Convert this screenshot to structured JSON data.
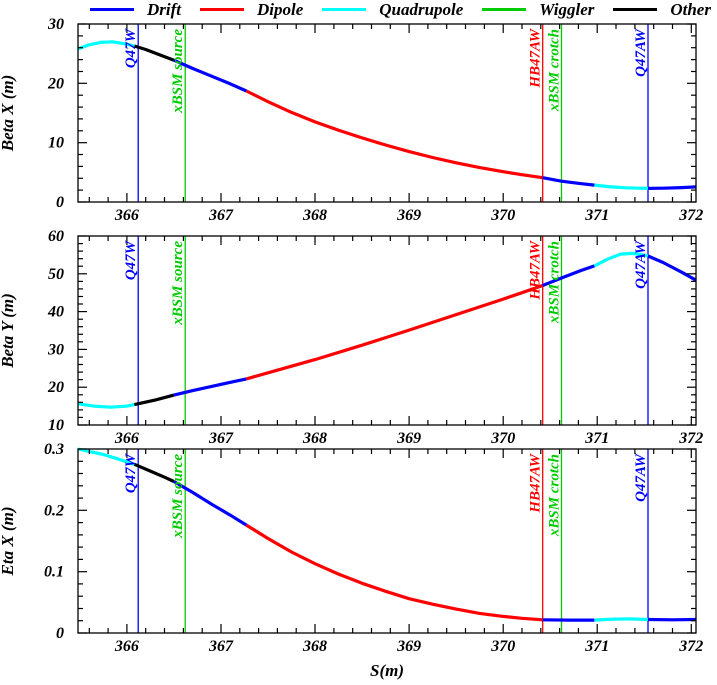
{
  "legend": {
    "items": [
      {
        "label": "Drift",
        "color": "#0000ff"
      },
      {
        "label": "Dipole",
        "color": "#ff0000"
      },
      {
        "label": "Quadrupole",
        "color": "#00ffff"
      },
      {
        "label": "Wiggler",
        "color": "#00cc00"
      },
      {
        "label": "Other",
        "color": "#000000"
      }
    ]
  },
  "markers": [
    {
      "label": "Q47W",
      "s": 366.12,
      "color": "#0000ff"
    },
    {
      "label": "xBSM source",
      "s": 366.62,
      "color": "#00cc00"
    },
    {
      "label": "HB47AW",
      "s": 370.42,
      "color": "#ff0000"
    },
    {
      "label": "xBSM crotch",
      "s": 370.62,
      "color": "#00cc00"
    },
    {
      "label": "Q47AW",
      "s": 371.54,
      "color": "#0000ff"
    }
  ],
  "axis": {
    "x_label": "S(m)",
    "x_min": 365.48,
    "x_max": 372.05,
    "x_ticks": [
      366,
      367,
      368,
      369,
      370,
      371,
      372
    ],
    "x_tick_labels": [
      "366",
      "367",
      "368",
      "369",
      "370",
      "371",
      "372"
    ],
    "x_minor_step": 0.2
  },
  "chart_data": [
    {
      "type": "line",
      "ylabel": "Beta X (m)",
      "ylim": [
        0,
        30
      ],
      "yticks": [
        0,
        10,
        20,
        30
      ],
      "ytick_labels": [
        "0",
        "10",
        "20",
        "30"
      ],
      "y_minor_step": 2,
      "grid": false,
      "segments": [
        {
          "element": "Quadrupole",
          "color": "#00ffff",
          "points": [
            [
              365.48,
              25.8
            ],
            [
              365.6,
              26.5
            ],
            [
              365.72,
              26.9
            ],
            [
              365.85,
              27.0
            ],
            [
              366.0,
              26.6
            ],
            [
              366.08,
              26.3
            ]
          ]
        },
        {
          "element": "Other",
          "color": "#000000",
          "points": [
            [
              366.08,
              26.3
            ],
            [
              366.2,
              25.7
            ],
            [
              366.35,
              24.8
            ],
            [
              366.5,
              23.9
            ]
          ]
        },
        {
          "element": "Drift",
          "color": "#0000ff",
          "points": [
            [
              366.5,
              23.9
            ],
            [
              366.7,
              22.5
            ],
            [
              366.9,
              21.2
            ],
            [
              367.1,
              19.9
            ],
            [
              367.27,
              18.7
            ]
          ]
        },
        {
          "element": "Dipole",
          "color": "#ff0000",
          "points": [
            [
              367.27,
              18.7
            ],
            [
              367.5,
              16.9
            ],
            [
              367.75,
              15.1
            ],
            [
              368.0,
              13.5
            ],
            [
              368.25,
              12.1
            ],
            [
              368.5,
              10.8
            ],
            [
              368.75,
              9.6
            ],
            [
              369.0,
              8.5
            ],
            [
              369.25,
              7.5
            ],
            [
              369.5,
              6.6
            ],
            [
              369.75,
              5.8
            ],
            [
              370.0,
              5.1
            ],
            [
              370.2,
              4.6
            ],
            [
              370.42,
              4.1
            ]
          ]
        },
        {
          "element": "Drift",
          "color": "#0000ff",
          "points": [
            [
              370.42,
              4.1
            ],
            [
              370.62,
              3.5
            ],
            [
              370.82,
              3.1
            ],
            [
              370.97,
              2.85
            ]
          ]
        },
        {
          "element": "Quadrupole",
          "color": "#00ffff",
          "points": [
            [
              370.97,
              2.85
            ],
            [
              371.12,
              2.6
            ],
            [
              371.3,
              2.4
            ],
            [
              371.54,
              2.3
            ]
          ]
        },
        {
          "element": "Drift",
          "color": "#0000ff",
          "points": [
            [
              371.54,
              2.3
            ],
            [
              371.7,
              2.33
            ],
            [
              371.9,
              2.42
            ],
            [
              372.05,
              2.55
            ]
          ]
        }
      ]
    },
    {
      "type": "line",
      "ylabel": "Beta Y (m)",
      "ylim": [
        10,
        60
      ],
      "yticks": [
        10,
        20,
        30,
        40,
        50,
        60
      ],
      "ytick_labels": [
        "10",
        "20",
        "30",
        "40",
        "50",
        "60"
      ],
      "y_minor_step": 2,
      "grid": false,
      "segments": [
        {
          "element": "Quadrupole",
          "color": "#00ffff",
          "points": [
            [
              365.48,
              15.6
            ],
            [
              365.65,
              15.0
            ],
            [
              365.82,
              14.7
            ],
            [
              366.0,
              15.0
            ],
            [
              366.08,
              15.4
            ]
          ]
        },
        {
          "element": "Other",
          "color": "#000000",
          "points": [
            [
              366.08,
              15.4
            ],
            [
              366.3,
              16.6
            ],
            [
              366.5,
              17.9
            ]
          ]
        },
        {
          "element": "Drift",
          "color": "#0000ff",
          "points": [
            [
              366.5,
              17.9
            ],
            [
              366.7,
              19.1
            ],
            [
              366.9,
              20.2
            ],
            [
              367.1,
              21.3
            ],
            [
              367.27,
              22.2
            ]
          ]
        },
        {
          "element": "Dipole",
          "color": "#ff0000",
          "points": [
            [
              367.27,
              22.2
            ],
            [
              367.5,
              23.8
            ],
            [
              368.0,
              27.3
            ],
            [
              368.5,
              31.1
            ],
            [
              369.0,
              35.1
            ],
            [
              369.5,
              39.2
            ],
            [
              370.0,
              43.3
            ],
            [
              370.2,
              45.0
            ],
            [
              370.42,
              46.9
            ]
          ]
        },
        {
          "element": "Drift",
          "color": "#0000ff",
          "points": [
            [
              370.42,
              46.9
            ],
            [
              370.62,
              48.9
            ],
            [
              370.82,
              50.8
            ],
            [
              370.97,
              52.1
            ]
          ]
        },
        {
          "element": "Quadrupole",
          "color": "#00ffff",
          "points": [
            [
              370.97,
              52.1
            ],
            [
              371.12,
              54.0
            ],
            [
              371.25,
              55.2
            ],
            [
              371.37,
              55.4
            ],
            [
              371.47,
              55.1
            ],
            [
              371.54,
              54.7
            ]
          ]
        },
        {
          "element": "Drift",
          "color": "#0000ff",
          "points": [
            [
              371.54,
              54.7
            ],
            [
              371.7,
              53.0
            ],
            [
              371.9,
              50.4
            ],
            [
              372.05,
              48.3
            ]
          ]
        }
      ]
    },
    {
      "type": "line",
      "ylabel": "Eta X (m)",
      "ylim": [
        0,
        0.3
      ],
      "yticks": [
        0,
        0.1,
        0.2,
        0.3
      ],
      "ytick_labels": [
        "0",
        "0.1",
        "0.2",
        "0.3"
      ],
      "y_minor_step": 0.02,
      "grid": false,
      "segments": [
        {
          "element": "Quadrupole",
          "color": "#00ffff",
          "points": [
            [
              365.48,
              0.3
            ],
            [
              365.6,
              0.296
            ],
            [
              365.75,
              0.291
            ],
            [
              365.9,
              0.284
            ],
            [
              366.0,
              0.279
            ],
            [
              366.08,
              0.275
            ]
          ]
        },
        {
          "element": "Other",
          "color": "#000000",
          "points": [
            [
              366.08,
              0.275
            ],
            [
              366.25,
              0.264
            ],
            [
              366.4,
              0.254
            ],
            [
              366.5,
              0.247
            ]
          ]
        },
        {
          "element": "Drift",
          "color": "#0000ff",
          "points": [
            [
              366.5,
              0.247
            ],
            [
              366.7,
              0.229
            ],
            [
              366.9,
              0.21
            ],
            [
              367.1,
              0.192
            ],
            [
              367.27,
              0.176
            ]
          ]
        },
        {
          "element": "Dipole",
          "color": "#ff0000",
          "points": [
            [
              367.27,
              0.176
            ],
            [
              367.5,
              0.154
            ],
            [
              367.75,
              0.132
            ],
            [
              368.0,
              0.113
            ],
            [
              368.25,
              0.096
            ],
            [
              368.5,
              0.081
            ],
            [
              368.75,
              0.068
            ],
            [
              369.0,
              0.056
            ],
            [
              369.25,
              0.047
            ],
            [
              369.5,
              0.039
            ],
            [
              369.75,
              0.032
            ],
            [
              370.0,
              0.027
            ],
            [
              370.2,
              0.024
            ],
            [
              370.42,
              0.0215
            ]
          ]
        },
        {
          "element": "Drift",
          "color": "#0000ff",
          "points": [
            [
              370.42,
              0.0215
            ],
            [
              370.7,
              0.021
            ],
            [
              370.97,
              0.021
            ]
          ]
        },
        {
          "element": "Quadrupole",
          "color": "#00ffff",
          "points": [
            [
              370.97,
              0.021
            ],
            [
              371.15,
              0.0225
            ],
            [
              371.35,
              0.023
            ],
            [
              371.54,
              0.022
            ]
          ]
        },
        {
          "element": "Drift",
          "color": "#0000ff",
          "points": [
            [
              371.54,
              0.022
            ],
            [
              371.8,
              0.0215
            ],
            [
              372.05,
              0.022
            ]
          ]
        }
      ]
    }
  ]
}
